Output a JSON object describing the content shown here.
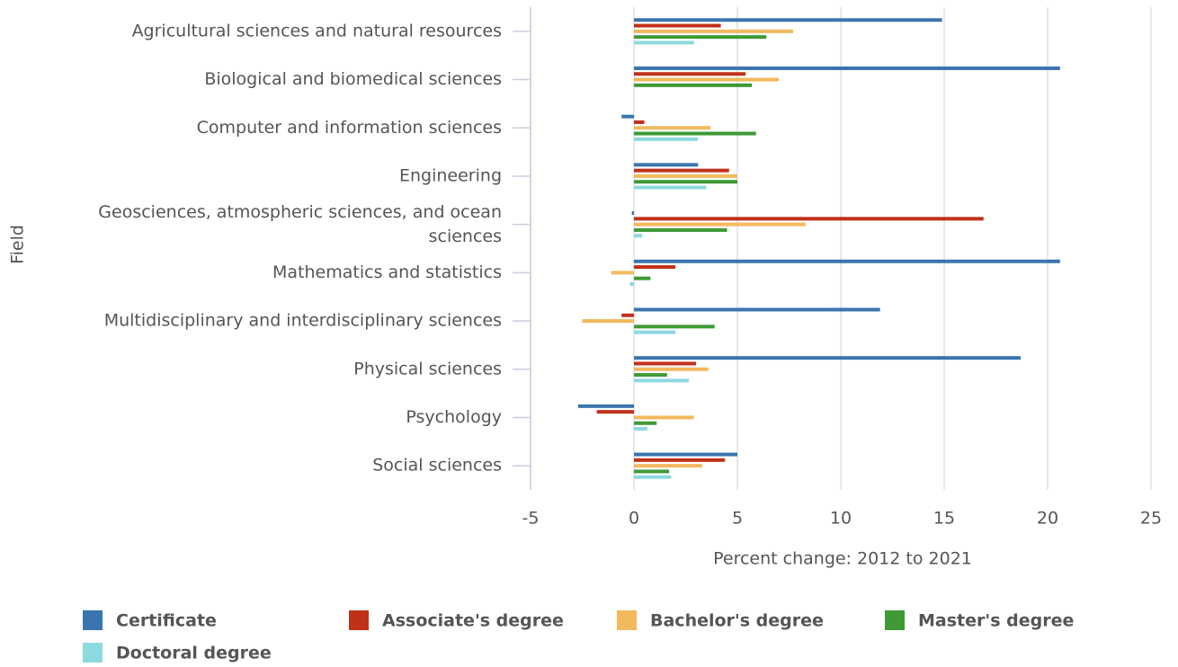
{
  "chart_data": {
    "type": "hbar",
    "xlabel": "Percent change: 2012 to 2021",
    "ylabel": "Field",
    "categories": [
      "Agricultural sciences and natural resources",
      "Biological and biomedical sciences",
      "Computer and information sciences",
      "Engineering",
      "Geosciences, atmospheric sciences, and ocean sciences",
      "Mathematics and statistics",
      "Multidisciplinary and interdisciplinary sciences",
      "Physical sciences",
      "Psychology",
      "Social sciences"
    ],
    "series": [
      {
        "name": "Certificate",
        "color": "#3a75b0",
        "values": [
          14.9,
          20.6,
          -0.6,
          3.1,
          -0.1,
          20.6,
          11.9,
          18.7,
          -2.7,
          5.0
        ]
      },
      {
        "name": "Associate's degree",
        "color": "#c0311a",
        "values": [
          4.2,
          5.4,
          0.5,
          4.6,
          16.9,
          2.0,
          -0.6,
          3.0,
          -1.8,
          4.4
        ]
      },
      {
        "name": "Bachelor's degree",
        "color": "#f2b95e",
        "values": [
          7.7,
          7.0,
          3.7,
          5.0,
          8.3,
          -1.1,
          -2.5,
          3.6,
          2.9,
          3.3
        ]
      },
      {
        "name": "Master's degree",
        "color": "#3f9a35",
        "values": [
          6.4,
          5.7,
          5.9,
          5.0,
          4.5,
          0.8,
          3.9,
          1.6,
          1.1,
          1.7
        ]
      },
      {
        "name": "Doctoral degree",
        "color": "#8dd9e0",
        "values": [
          2.9,
          0,
          3.1,
          3.5,
          0.4,
          -0.2,
          2.0,
          2.65,
          0.65,
          1.8
        ]
      }
    ],
    "xlim": [
      -5,
      25
    ],
    "xticks": [
      -5,
      0,
      5,
      10,
      15,
      20,
      25
    ],
    "grid": true
  }
}
